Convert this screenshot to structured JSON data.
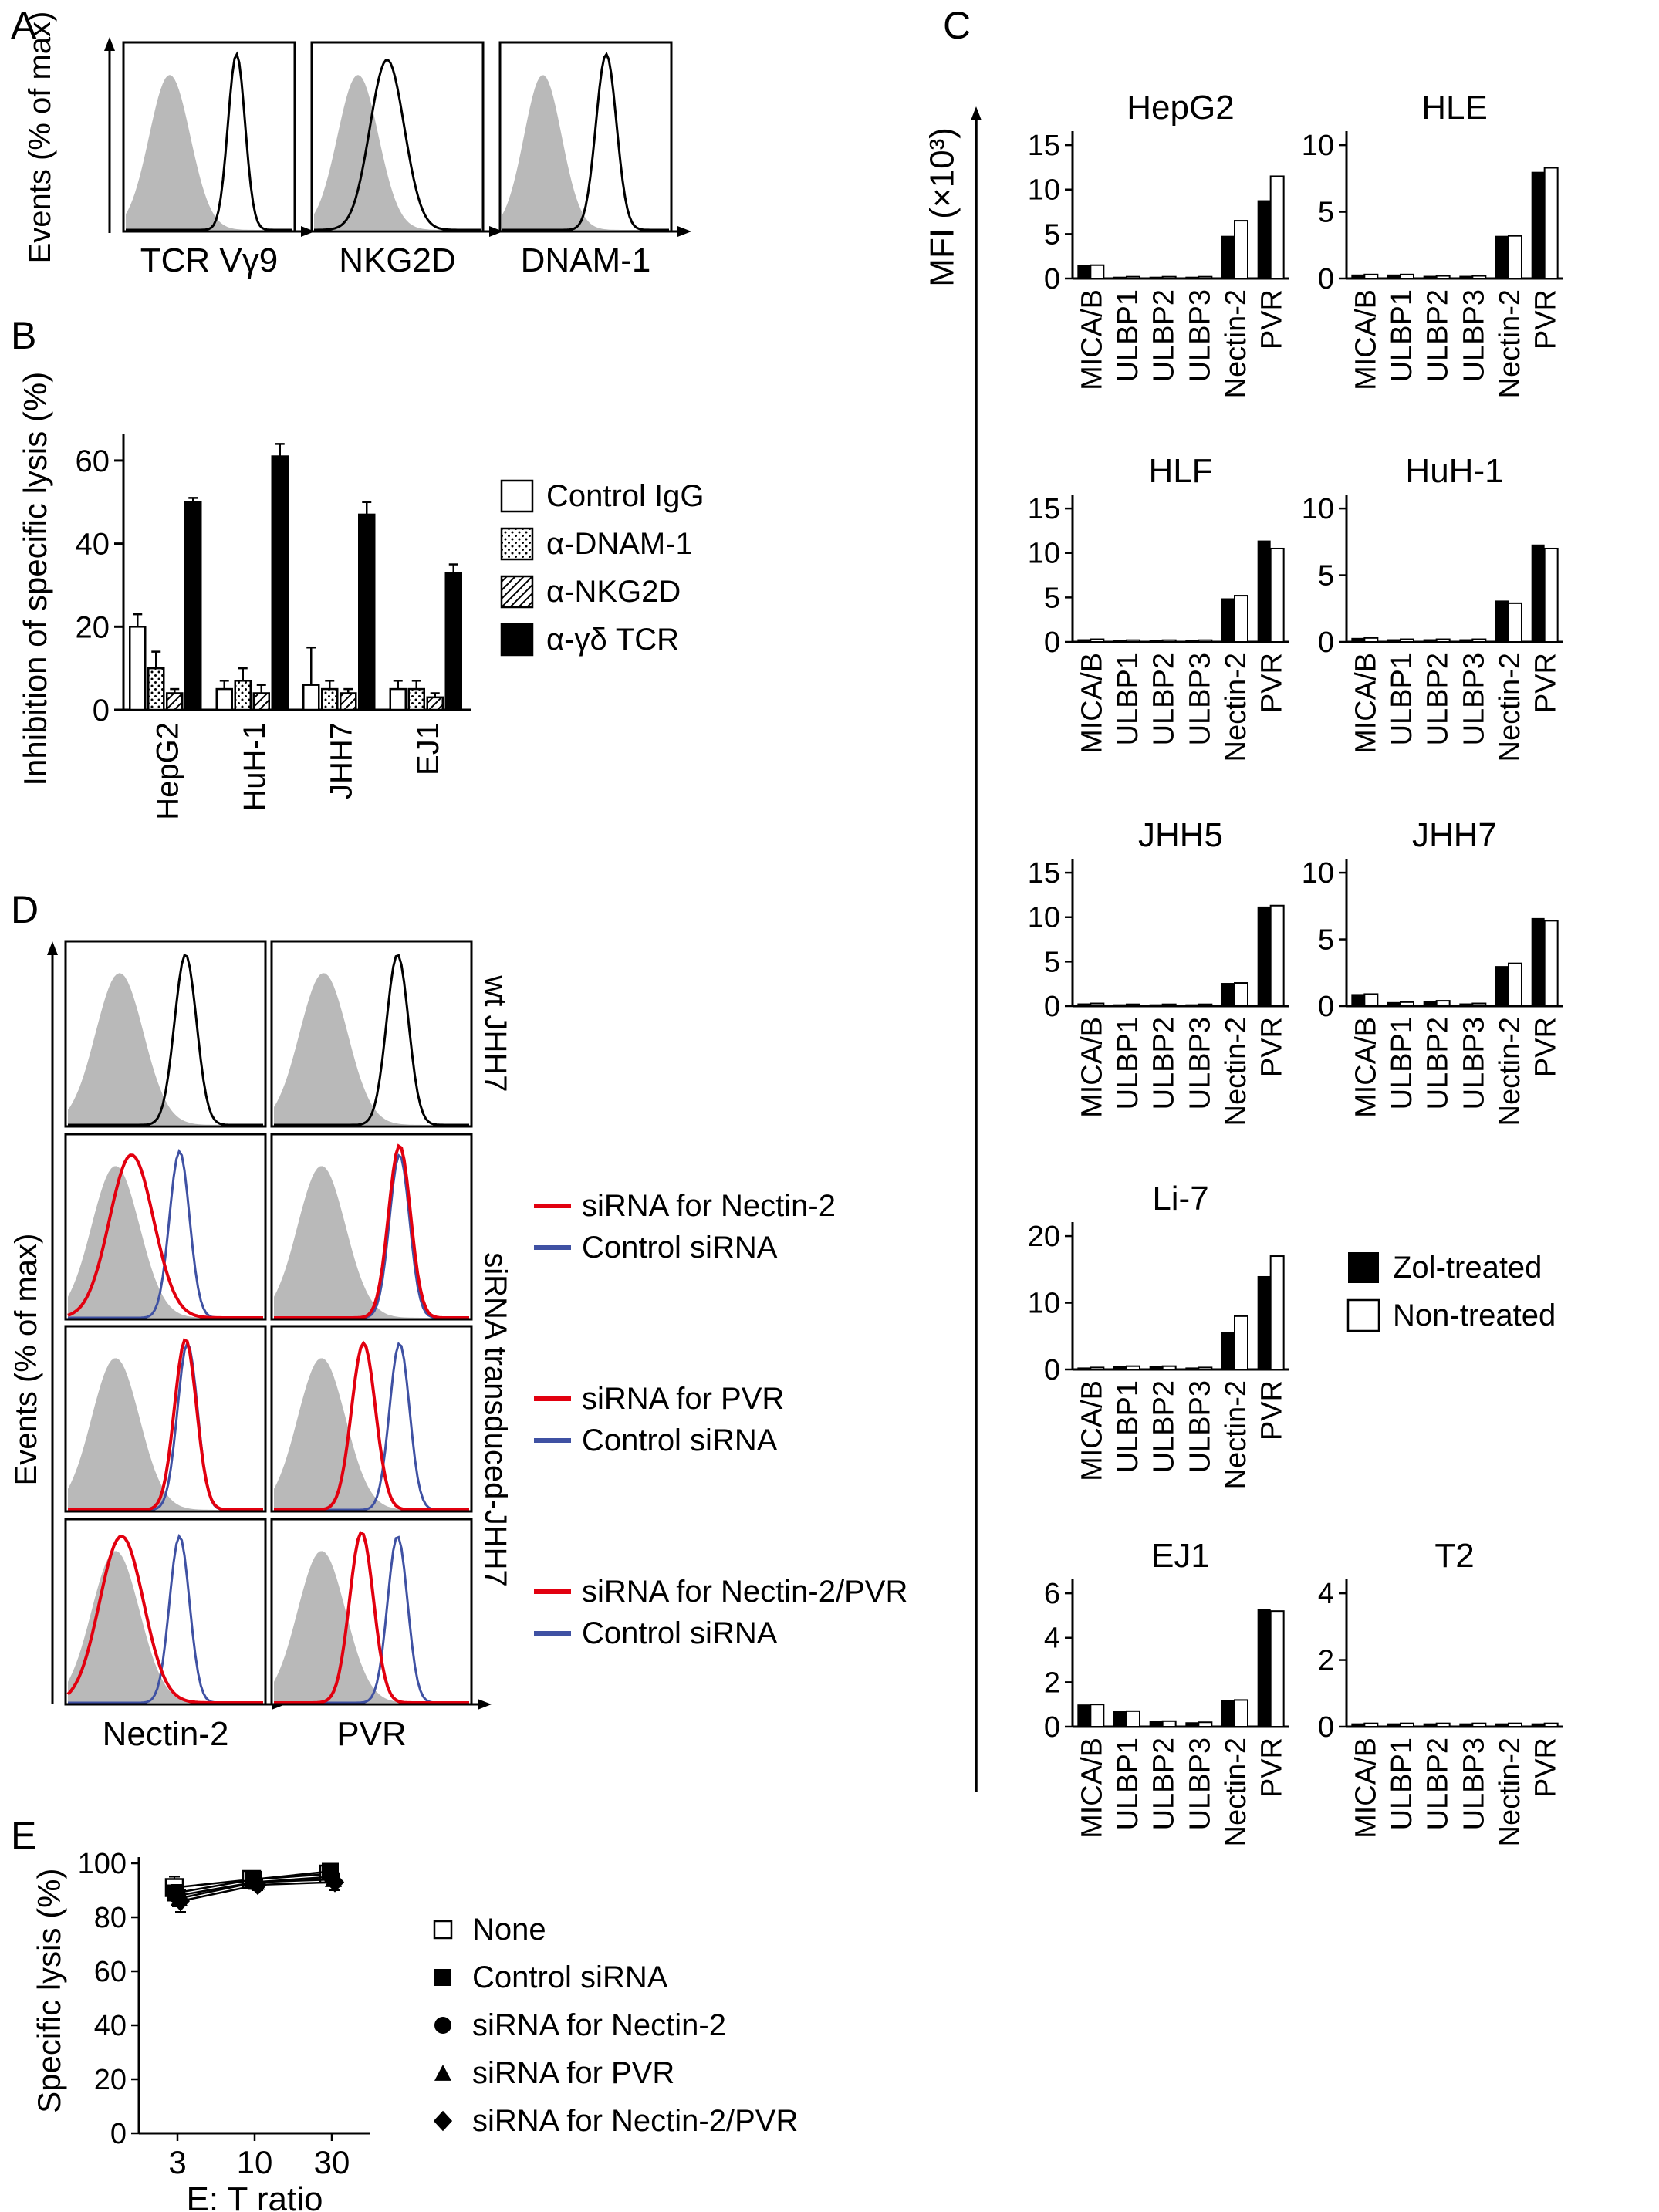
{
  "colors": {
    "black": "#000000",
    "gray": "#b9b9b9",
    "red": "#e2000f",
    "blue": "#3f51a3"
  },
  "panelA": {
    "label": "A",
    "y_axis_label": "Events (% of max)",
    "histograms": [
      {
        "x_label": "TCR Vγ9",
        "curves": [
          {
            "color": "gray",
            "fill": true,
            "peak": 0.27,
            "width": 0.12,
            "height": 0.82
          },
          {
            "color": "black",
            "fill": false,
            "peak": 0.66,
            "width": 0.05,
            "height": 0.93
          }
        ]
      },
      {
        "x_label": "NKG2D",
        "curves": [
          {
            "color": "gray",
            "fill": true,
            "peak": 0.27,
            "width": 0.12,
            "height": 0.82
          },
          {
            "color": "black",
            "fill": false,
            "peak": 0.44,
            "width": 0.1,
            "height": 0.9
          }
        ]
      },
      {
        "x_label": "DNAM-1",
        "curves": [
          {
            "color": "gray",
            "fill": true,
            "peak": 0.25,
            "width": 0.11,
            "height": 0.82
          },
          {
            "color": "black",
            "fill": false,
            "peak": 0.62,
            "width": 0.06,
            "height": 0.93
          }
        ]
      }
    ]
  },
  "panelB": {
    "label": "B",
    "y_axis_label": "Inhibition of specific lysis (%)"
  },
  "panelC": {
    "label": "C",
    "y_axis_label": "MFI (×10³)",
    "legend": [
      {
        "name": "Zol-treated",
        "fill": "solid"
      },
      {
        "name": "Non-treated",
        "fill": "open"
      }
    ]
  },
  "panelD": {
    "label": "D",
    "y_axis_label": "Events (% of max)",
    "col_labels": [
      "Nectin-2",
      "PVR"
    ],
    "row_label_wt": "wt JHH7",
    "row_label_sirna": "siRNA transduced-JHH7",
    "rows": [
      {
        "legend": [],
        "cells": [
          {
            "curves": [
              {
                "color": "gray",
                "fill": true,
                "peak": 0.27,
                "width": 0.12,
                "height": 0.82
              },
              {
                "color": "black",
                "fill": false,
                "peak": 0.6,
                "width": 0.055,
                "height": 0.92
              }
            ]
          },
          {
            "curves": [
              {
                "color": "gray",
                "fill": true,
                "peak": 0.26,
                "width": 0.12,
                "height": 0.82
              },
              {
                "color": "black",
                "fill": false,
                "peak": 0.63,
                "width": 0.055,
                "height": 0.92
              }
            ]
          }
        ]
      },
      {
        "legend": [
          {
            "color": "red",
            "label": "siRNA for Nectin-2"
          },
          {
            "color": "blue",
            "label": "Control siRNA"
          }
        ],
        "cells": [
          {
            "curves": [
              {
                "color": "gray",
                "fill": true,
                "peak": 0.25,
                "width": 0.12,
                "height": 0.82
              },
              {
                "color": "blue",
                "fill": false,
                "peak": 0.57,
                "width": 0.05,
                "height": 0.9
              },
              {
                "color": "red",
                "fill": false,
                "peak": 0.33,
                "width": 0.11,
                "height": 0.88,
                "lw": 4
              }
            ]
          },
          {
            "curves": [
              {
                "color": "gray",
                "fill": true,
                "peak": 0.25,
                "width": 0.12,
                "height": 0.82
              },
              {
                "color": "blue",
                "fill": false,
                "peak": 0.64,
                "width": 0.05,
                "height": 0.88
              },
              {
                "color": "red",
                "fill": false,
                "peak": 0.64,
                "width": 0.055,
                "height": 0.93,
                "lw": 4
              }
            ]
          }
        ]
      },
      {
        "legend": [
          {
            "color": "red",
            "label": "siRNA for PVR"
          },
          {
            "color": "blue",
            "label": "Control siRNA"
          }
        ],
        "cells": [
          {
            "curves": [
              {
                "color": "gray",
                "fill": true,
                "peak": 0.25,
                "width": 0.12,
                "height": 0.82
              },
              {
                "color": "blue",
                "fill": false,
                "peak": 0.61,
                "width": 0.05,
                "height": 0.9
              },
              {
                "color": "red",
                "fill": false,
                "peak": 0.6,
                "width": 0.055,
                "height": 0.92,
                "lw": 4
              }
            ]
          },
          {
            "curves": [
              {
                "color": "gray",
                "fill": true,
                "peak": 0.25,
                "width": 0.12,
                "height": 0.82
              },
              {
                "color": "blue",
                "fill": false,
                "peak": 0.64,
                "width": 0.05,
                "height": 0.9
              },
              {
                "color": "red",
                "fill": false,
                "peak": 0.46,
                "width": 0.06,
                "height": 0.9,
                "lw": 4
              }
            ]
          }
        ]
      },
      {
        "legend": [
          {
            "color": "red",
            "label": "siRNA for Nectin-2/PVR"
          },
          {
            "color": "blue",
            "label": "Control siRNA"
          }
        ],
        "cells": [
          {
            "curves": [
              {
                "color": "gray",
                "fill": true,
                "peak": 0.25,
                "width": 0.12,
                "height": 0.82
              },
              {
                "color": "blue",
                "fill": false,
                "peak": 0.57,
                "width": 0.05,
                "height": 0.9
              },
              {
                "color": "red",
                "fill": false,
                "peak": 0.28,
                "width": 0.11,
                "height": 0.9,
                "lw": 4
              }
            ]
          },
          {
            "curves": [
              {
                "color": "gray",
                "fill": true,
                "peak": 0.25,
                "width": 0.12,
                "height": 0.82
              },
              {
                "color": "blue",
                "fill": false,
                "peak": 0.63,
                "width": 0.05,
                "height": 0.9
              },
              {
                "color": "red",
                "fill": false,
                "peak": 0.45,
                "width": 0.06,
                "height": 0.92,
                "lw": 4
              }
            ]
          }
        ]
      }
    ]
  },
  "panelE": {
    "label": "E",
    "y_label": "Specific lysis (%)"
  },
  "chart_data": [
    {
      "id": "B",
      "type": "bar",
      "title": "",
      "ylabel": "Inhibition of specific lysis (%)",
      "ylim": [
        0,
        65
      ],
      "yticks": [
        0,
        20,
        40,
        60
      ],
      "categories": [
        "HepG2",
        "HuH-1",
        "JHH7",
        "EJ1"
      ],
      "series": [
        {
          "name": "Control IgG",
          "style": "open",
          "values": [
            20,
            5,
            6,
            5
          ],
          "errors": [
            3,
            2,
            9,
            2
          ]
        },
        {
          "name": "α-DNAM-1",
          "style": "dots",
          "values": [
            10,
            7,
            5,
            5
          ],
          "errors": [
            4,
            3,
            2,
            2
          ]
        },
        {
          "name": "α-NKG2D",
          "style": "hatch",
          "values": [
            4,
            4,
            4,
            3
          ],
          "errors": [
            1,
            2,
            1,
            1
          ]
        },
        {
          "name": "α-γδ TCR",
          "style": "solid",
          "values": [
            50,
            61,
            47,
            33
          ],
          "errors": [
            1,
            3,
            3,
            2
          ]
        }
      ]
    },
    {
      "id": "C-HepG2",
      "type": "bar",
      "title": "HepG2",
      "ylim": [
        0,
        15
      ],
      "yticks": [
        0,
        5,
        10,
        15
      ],
      "categories": [
        "MICA/B",
        "ULBP1",
        "ULBP2",
        "ULBP3",
        "Nectin-2",
        "PVR"
      ],
      "series": [
        {
          "name": "Zol-treated",
          "values": [
            1.5,
            0.2,
            0.2,
            0.2,
            4.8,
            8.8
          ]
        },
        {
          "name": "Non-treated",
          "values": [
            1.5,
            0.2,
            0.2,
            0.2,
            6.5,
            11.5
          ]
        }
      ]
    },
    {
      "id": "C-HLE",
      "type": "bar",
      "title": "HLE",
      "ylim": [
        0,
        10
      ],
      "yticks": [
        0,
        5,
        10
      ],
      "categories": [
        "MICA/B",
        "ULBP1",
        "ULBP2",
        "ULBP3",
        "Nectin-2",
        "PVR"
      ],
      "series": [
        {
          "name": "Zol-treated",
          "values": [
            0.3,
            0.3,
            0.2,
            0.2,
            3.2,
            8.0
          ]
        },
        {
          "name": "Non-treated",
          "values": [
            0.3,
            0.3,
            0.2,
            0.2,
            3.2,
            8.3
          ]
        }
      ]
    },
    {
      "id": "C-HLF",
      "type": "bar",
      "title": "HLF",
      "ylim": [
        0,
        15
      ],
      "yticks": [
        0,
        5,
        10,
        15
      ],
      "categories": [
        "MICA/B",
        "ULBP1",
        "ULBP2",
        "ULBP3",
        "Nectin-2",
        "PVR"
      ],
      "series": [
        {
          "name": "Zol-treated",
          "values": [
            0.3,
            0.2,
            0.2,
            0.2,
            4.9,
            11.4
          ]
        },
        {
          "name": "Non-treated",
          "values": [
            0.3,
            0.2,
            0.2,
            0.2,
            5.2,
            10.5
          ]
        }
      ]
    },
    {
      "id": "C-HuH-1",
      "type": "bar",
      "title": "HuH-1",
      "ylim": [
        0,
        10
      ],
      "yticks": [
        0,
        5,
        10
      ],
      "categories": [
        "MICA/B",
        "ULBP1",
        "ULBP2",
        "ULBP3",
        "Nectin-2",
        "PVR"
      ],
      "series": [
        {
          "name": "Zol-treated",
          "values": [
            0.3,
            0.2,
            0.2,
            0.2,
            3.1,
            7.3
          ]
        },
        {
          "name": "Non-treated",
          "values": [
            0.3,
            0.2,
            0.2,
            0.2,
            2.9,
            7.0
          ]
        }
      ]
    },
    {
      "id": "C-JHH5",
      "type": "bar",
      "title": "JHH5",
      "ylim": [
        0,
        15
      ],
      "yticks": [
        0,
        5,
        10,
        15
      ],
      "categories": [
        "MICA/B",
        "ULBP1",
        "ULBP2",
        "ULBP3",
        "Nectin-2",
        "PVR"
      ],
      "series": [
        {
          "name": "Zol-treated",
          "values": [
            0.3,
            0.2,
            0.2,
            0.2,
            2.6,
            11.2
          ]
        },
        {
          "name": "Non-treated",
          "values": [
            0.3,
            0.2,
            0.2,
            0.2,
            2.6,
            11.3
          ]
        }
      ]
    },
    {
      "id": "C-JHH7",
      "type": "bar",
      "title": "JHH7",
      "ylim": [
        0,
        10
      ],
      "yticks": [
        0,
        5,
        10
      ],
      "categories": [
        "MICA/B",
        "ULBP1",
        "ULBP2",
        "ULBP3",
        "Nectin-2",
        "PVR"
      ],
      "series": [
        {
          "name": "Zol-treated",
          "values": [
            0.9,
            0.3,
            0.4,
            0.2,
            3.0,
            6.6
          ]
        },
        {
          "name": "Non-treated",
          "values": [
            0.9,
            0.3,
            0.4,
            0.2,
            3.2,
            6.4
          ]
        }
      ]
    },
    {
      "id": "C-Li-7",
      "type": "bar",
      "title": "Li-7",
      "ylim": [
        0,
        20
      ],
      "yticks": [
        0,
        10,
        20
      ],
      "categories": [
        "MICA/B",
        "ULBP1",
        "ULBP2",
        "ULBP3",
        "Nectin-2",
        "PVR"
      ],
      "series": [
        {
          "name": "Zol-treated",
          "values": [
            0.3,
            0.5,
            0.5,
            0.3,
            5.6,
            14.0
          ]
        },
        {
          "name": "Non-treated",
          "values": [
            0.3,
            0.5,
            0.5,
            0.3,
            8.0,
            17.0
          ]
        }
      ]
    },
    {
      "id": "C-EJ1",
      "type": "bar",
      "title": "EJ1",
      "ylim": [
        0,
        6
      ],
      "yticks": [
        0,
        2,
        4,
        6
      ],
      "categories": [
        "MICA/B",
        "ULBP1",
        "ULBP2",
        "ULBP3",
        "Nectin-2",
        "PVR"
      ],
      "series": [
        {
          "name": "Zol-treated",
          "values": [
            1.0,
            0.7,
            0.25,
            0.2,
            1.2,
            5.3
          ]
        },
        {
          "name": "Non-treated",
          "values": [
            1.0,
            0.7,
            0.25,
            0.2,
            1.2,
            5.2
          ]
        }
      ]
    },
    {
      "id": "C-T2",
      "type": "bar",
      "title": "T2",
      "ylim": [
        0,
        4
      ],
      "yticks": [
        0,
        2,
        4
      ],
      "categories": [
        "MICA/B",
        "ULBP1",
        "ULBP2",
        "ULBP3",
        "Nectin-2",
        "PVR"
      ],
      "series": [
        {
          "name": "Zol-treated",
          "values": [
            0.1,
            0.1,
            0.1,
            0.1,
            0.1,
            0.1
          ]
        },
        {
          "name": "Non-treated",
          "values": [
            0.1,
            0.1,
            0.1,
            0.1,
            0.1,
            0.1
          ]
        }
      ]
    },
    {
      "id": "E",
      "type": "line",
      "xlabel": "E: T ratio",
      "ylabel": "Specific lysis (%)",
      "x": [
        3,
        10,
        30
      ],
      "ylim": [
        0,
        100
      ],
      "yticks": [
        0,
        20,
        40,
        60,
        80,
        100
      ],
      "series": [
        {
          "name": "None",
          "marker": "square-open",
          "values": [
            91,
            94,
            96
          ],
          "errors": [
            4,
            3,
            3
          ]
        },
        {
          "name": "Control siRNA",
          "marker": "square",
          "values": [
            89,
            94,
            97
          ],
          "errors": [
            3,
            2,
            2
          ]
        },
        {
          "name": "siRNA for Nectin-2",
          "marker": "circle",
          "values": [
            88,
            93,
            95
          ],
          "errors": [
            4,
            2,
            2
          ]
        },
        {
          "name": "siRNA for PVR",
          "marker": "triangle",
          "values": [
            87,
            93,
            94
          ],
          "errors": [
            3,
            2,
            2
          ]
        },
        {
          "name": "siRNA for Nectin-2/PVR",
          "marker": "diamond",
          "values": [
            86,
            92,
            93
          ],
          "errors": [
            4,
            2,
            3
          ]
        }
      ]
    }
  ]
}
